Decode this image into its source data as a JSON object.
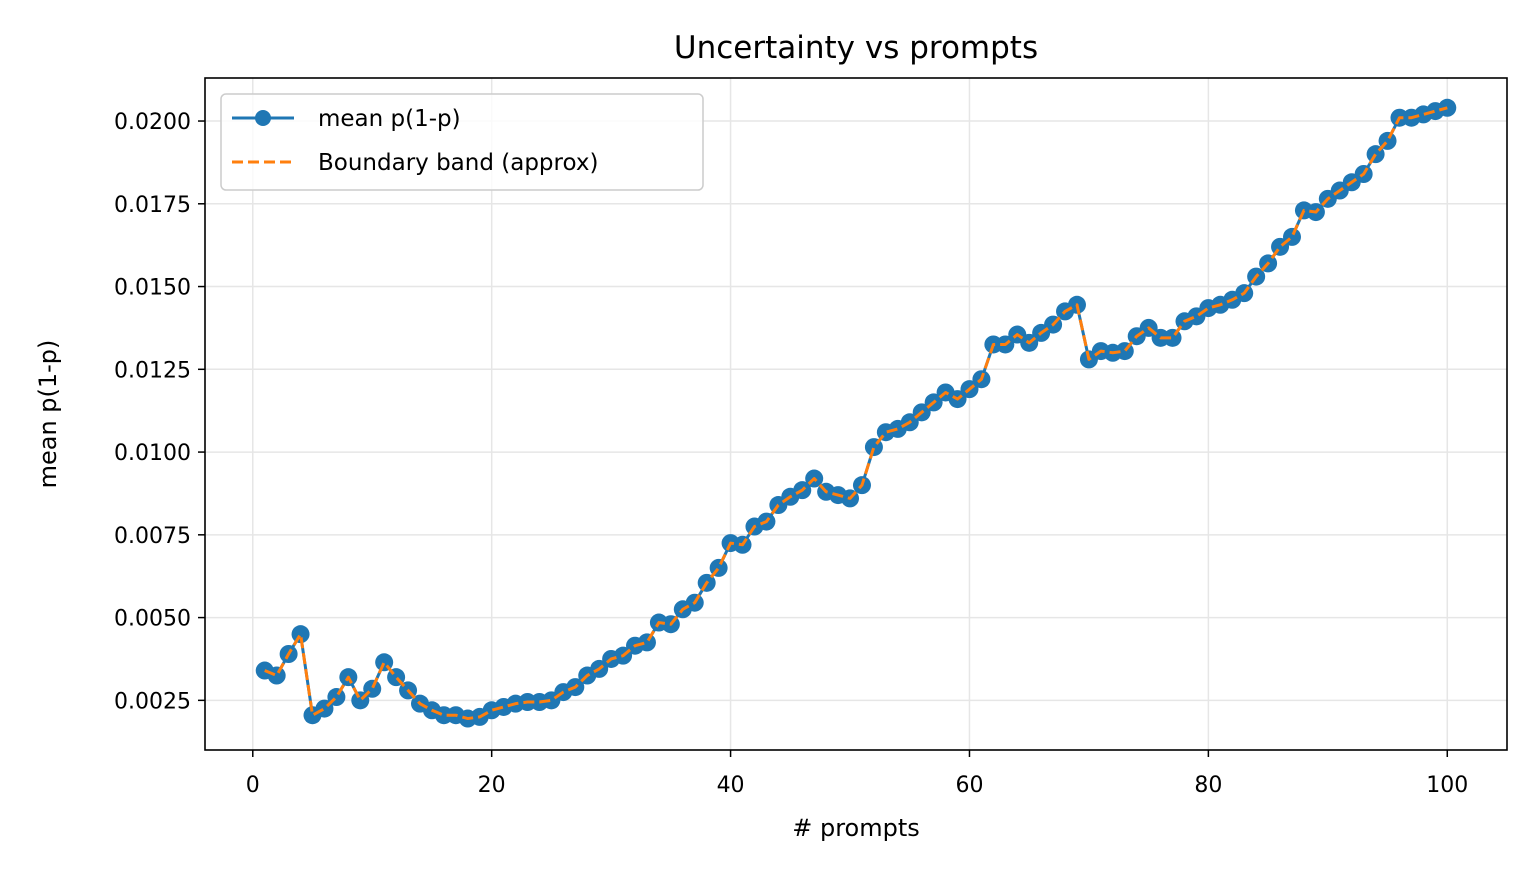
{
  "chart_data": {
    "type": "line",
    "title": "Uncertainty vs prompts",
    "xlabel": "# prompts",
    "ylabel": "mean p(1-p)",
    "xlim": [
      -4,
      105
    ],
    "ylim": [
      0.001,
      0.0213
    ],
    "xticks": [
      0,
      20,
      40,
      60,
      80,
      100
    ],
    "xtick_labels": [
      "0",
      "20",
      "40",
      "60",
      "80",
      "100"
    ],
    "yticks": [
      0.0025,
      0.005,
      0.0075,
      0.01,
      0.0125,
      0.015,
      0.0175,
      0.02
    ],
    "ytick_labels": [
      "0.0025",
      "0.0050",
      "0.0075",
      "0.0100",
      "0.0125",
      "0.0150",
      "0.0175",
      "0.0200"
    ],
    "grid": true,
    "legend_position": "upper-left",
    "x": [
      1,
      2,
      3,
      4,
      5,
      6,
      7,
      8,
      9,
      10,
      11,
      12,
      13,
      14,
      15,
      16,
      17,
      18,
      19,
      20,
      21,
      22,
      23,
      24,
      25,
      26,
      27,
      28,
      29,
      30,
      31,
      32,
      33,
      34,
      35,
      36,
      37,
      38,
      39,
      40,
      41,
      42,
      43,
      44,
      45,
      46,
      47,
      48,
      49,
      50,
      51,
      52,
      53,
      54,
      55,
      56,
      57,
      58,
      59,
      60,
      61,
      62,
      63,
      64,
      65,
      66,
      67,
      68,
      69,
      70,
      71,
      72,
      73,
      74,
      75,
      76,
      77,
      78,
      79,
      80,
      81,
      82,
      83,
      84,
      85,
      86,
      87,
      88,
      89,
      90,
      91,
      92,
      93,
      94,
      95,
      96,
      97,
      98,
      99,
      100
    ],
    "series": [
      {
        "name": "mean p(1-p)",
        "color": "#1f77b4",
        "style": "solid-with-circle-markers",
        "values": [
          0.0034,
          0.00325,
          0.0039,
          0.0045,
          0.00205,
          0.00225,
          0.0026,
          0.0032,
          0.0025,
          0.00285,
          0.00365,
          0.0032,
          0.0028,
          0.0024,
          0.0022,
          0.00205,
          0.00205,
          0.00195,
          0.002,
          0.0022,
          0.0023,
          0.0024,
          0.00245,
          0.00245,
          0.0025,
          0.00275,
          0.0029,
          0.00325,
          0.00345,
          0.00375,
          0.00385,
          0.00415,
          0.00425,
          0.00485,
          0.0048,
          0.00525,
          0.00545,
          0.00605,
          0.0065,
          0.00725,
          0.0072,
          0.00775,
          0.0079,
          0.0084,
          0.00865,
          0.00885,
          0.0092,
          0.0088,
          0.0087,
          0.0086,
          0.009,
          0.01015,
          0.0106,
          0.0107,
          0.0109,
          0.0112,
          0.0115,
          0.0118,
          0.0116,
          0.0119,
          0.0122,
          0.01325,
          0.01325,
          0.01355,
          0.0133,
          0.0136,
          0.01385,
          0.01425,
          0.01445,
          0.0128,
          0.01305,
          0.013,
          0.01305,
          0.0135,
          0.01375,
          0.01345,
          0.01345,
          0.01395,
          0.0141,
          0.01435,
          0.01445,
          0.0146,
          0.0148,
          0.0153,
          0.0157,
          0.0162,
          0.0165,
          0.0173,
          0.01725,
          0.01765,
          0.0179,
          0.01815,
          0.0184,
          0.019,
          0.0194,
          0.0201,
          0.0201,
          0.0202,
          0.0203,
          0.0204
        ]
      },
      {
        "name": "Boundary band (approx)",
        "color": "#ff7f0e",
        "style": "dashed",
        "values": [
          0.0034,
          0.00325,
          0.0039,
          0.0045,
          0.00205,
          0.00225,
          0.0026,
          0.0032,
          0.0025,
          0.00285,
          0.00365,
          0.0032,
          0.0028,
          0.0024,
          0.0022,
          0.00205,
          0.00205,
          0.00195,
          0.002,
          0.0022,
          0.0023,
          0.0024,
          0.00245,
          0.00245,
          0.0025,
          0.00275,
          0.0029,
          0.00325,
          0.00345,
          0.00375,
          0.00385,
          0.00415,
          0.00425,
          0.00485,
          0.0048,
          0.00525,
          0.00545,
          0.00605,
          0.0065,
          0.00725,
          0.0072,
          0.00775,
          0.0079,
          0.0084,
          0.00865,
          0.00885,
          0.0092,
          0.0088,
          0.0087,
          0.0086,
          0.009,
          0.01015,
          0.0106,
          0.0107,
          0.0109,
          0.0112,
          0.0115,
          0.0118,
          0.0116,
          0.0119,
          0.0122,
          0.01325,
          0.01325,
          0.01355,
          0.0133,
          0.0136,
          0.01385,
          0.01425,
          0.01445,
          0.0128,
          0.01305,
          0.013,
          0.01305,
          0.0135,
          0.01375,
          0.01345,
          0.01345,
          0.01395,
          0.0141,
          0.01435,
          0.01445,
          0.0146,
          0.0148,
          0.0153,
          0.0157,
          0.0162,
          0.0165,
          0.0173,
          0.01725,
          0.01765,
          0.0179,
          0.01815,
          0.0184,
          0.019,
          0.0194,
          0.0201,
          0.0201,
          0.0202,
          0.0203,
          0.0204
        ]
      }
    ]
  }
}
